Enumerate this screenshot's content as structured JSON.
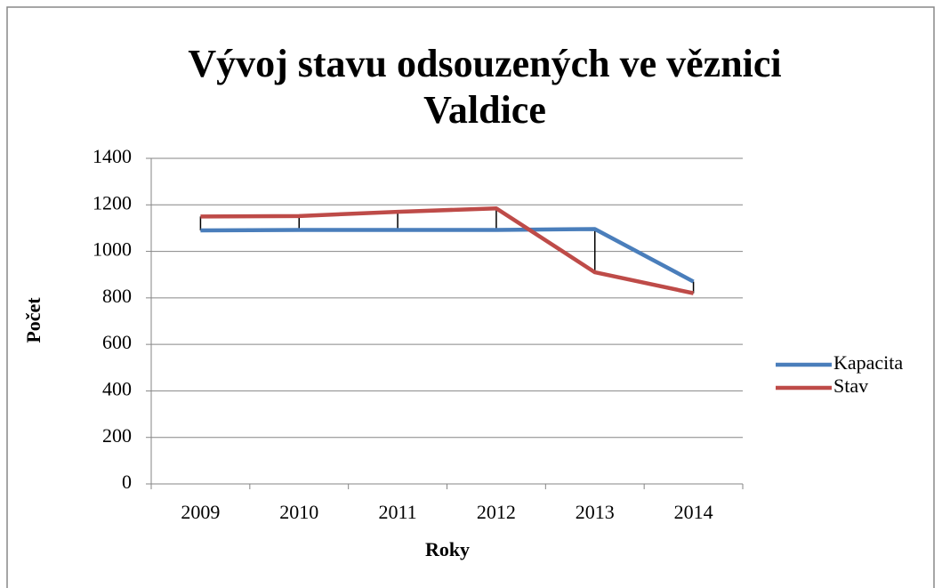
{
  "chart_data": {
    "type": "line",
    "title": [
      "Vývoj stavu odsouzených ve věznici",
      "Valdice"
    ],
    "x_label": "Roky",
    "y_label": "Počet",
    "categories": [
      "2009",
      "2010",
      "2011",
      "2012",
      "2013",
      "2014"
    ],
    "series": [
      {
        "name": "Kapacita",
        "color": "#4a7ebb",
        "values": [
          1090,
          1092,
          1092,
          1092,
          1096,
          870
        ]
      },
      {
        "name": "Stav",
        "color": "#be4b48",
        "values": [
          1150,
          1152,
          1170,
          1185,
          910,
          820
        ]
      }
    ],
    "ylim": [
      0,
      1400
    ],
    "yticks": [
      0,
      200,
      400,
      600,
      800,
      1000,
      1200,
      1400
    ],
    "grid": true,
    "drop_lines": true,
    "legend": "right"
  }
}
